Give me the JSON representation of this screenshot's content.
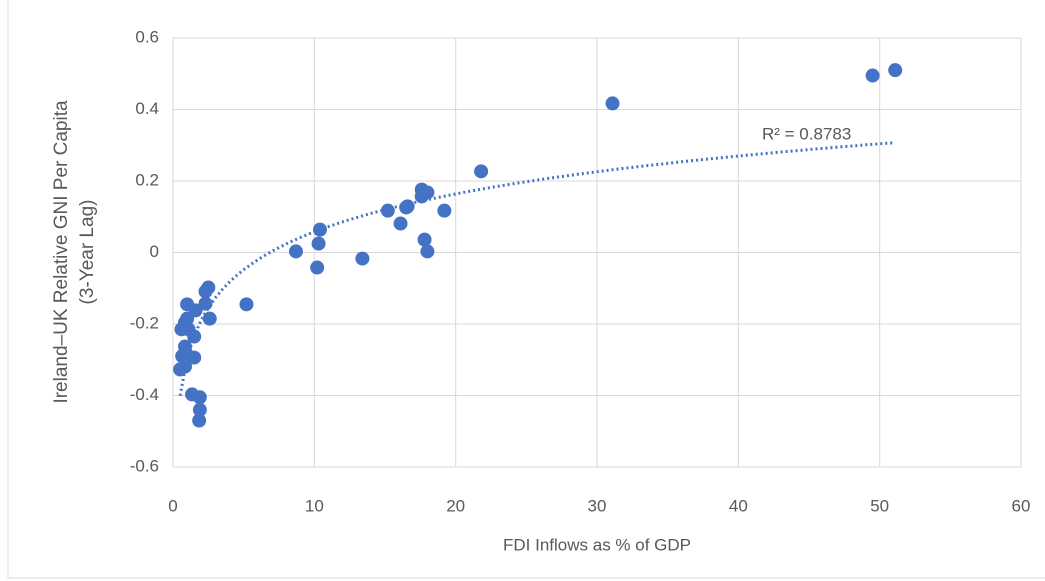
{
  "chart_data": {
    "type": "scatter",
    "x_label": "FDI Inflows as % of GDP",
    "y_label": [
      "Ireland–UK Relative GNI Per Capita",
      "(3-Year Lag)"
    ],
    "annotation": "R² = 0.8783",
    "color": "#4472c4",
    "trendline": "logarithmic",
    "grid": true,
    "xlim": [
      0,
      60
    ],
    "xticks": [
      0,
      10,
      20,
      30,
      40,
      50,
      60
    ],
    "ylim": [
      -0.6,
      0.6
    ],
    "yticks": [
      -0.6,
      -0.4,
      -0.2,
      0,
      0.2,
      0.4,
      0.6
    ],
    "x": [
      51.1,
      49.5,
      31.1,
      21.8,
      17.6,
      18.0,
      17.6,
      16.6,
      16.5,
      15.2,
      19.2,
      16.1,
      10.4,
      10.3,
      8.7,
      17.8,
      18.0,
      13.4,
      10.2,
      5.2,
      2.5,
      2.3,
      2.3,
      2.6,
      1.6,
      1.0,
      1.0,
      0.85,
      0.6,
      1.1,
      1.5,
      0.85,
      0.9,
      0.65,
      1.5,
      0.5,
      0.85,
      1.35,
      1.9,
      1.9,
      1.85
    ],
    "y": [
      0.51,
      0.495,
      0.417,
      0.227,
      0.176,
      0.168,
      0.157,
      0.129,
      0.126,
      0.117,
      0.117,
      0.081,
      0.064,
      0.025,
      0.003,
      0.036,
      0.003,
      -0.017,
      -0.042,
      -0.145,
      -0.098,
      -0.109,
      -0.143,
      -0.185,
      -0.162,
      -0.145,
      -0.185,
      -0.196,
      -0.215,
      -0.215,
      -0.235,
      -0.263,
      -0.28,
      -0.29,
      -0.294,
      -0.327,
      -0.319,
      -0.397,
      -0.405,
      -0.44,
      -0.47
    ]
  }
}
